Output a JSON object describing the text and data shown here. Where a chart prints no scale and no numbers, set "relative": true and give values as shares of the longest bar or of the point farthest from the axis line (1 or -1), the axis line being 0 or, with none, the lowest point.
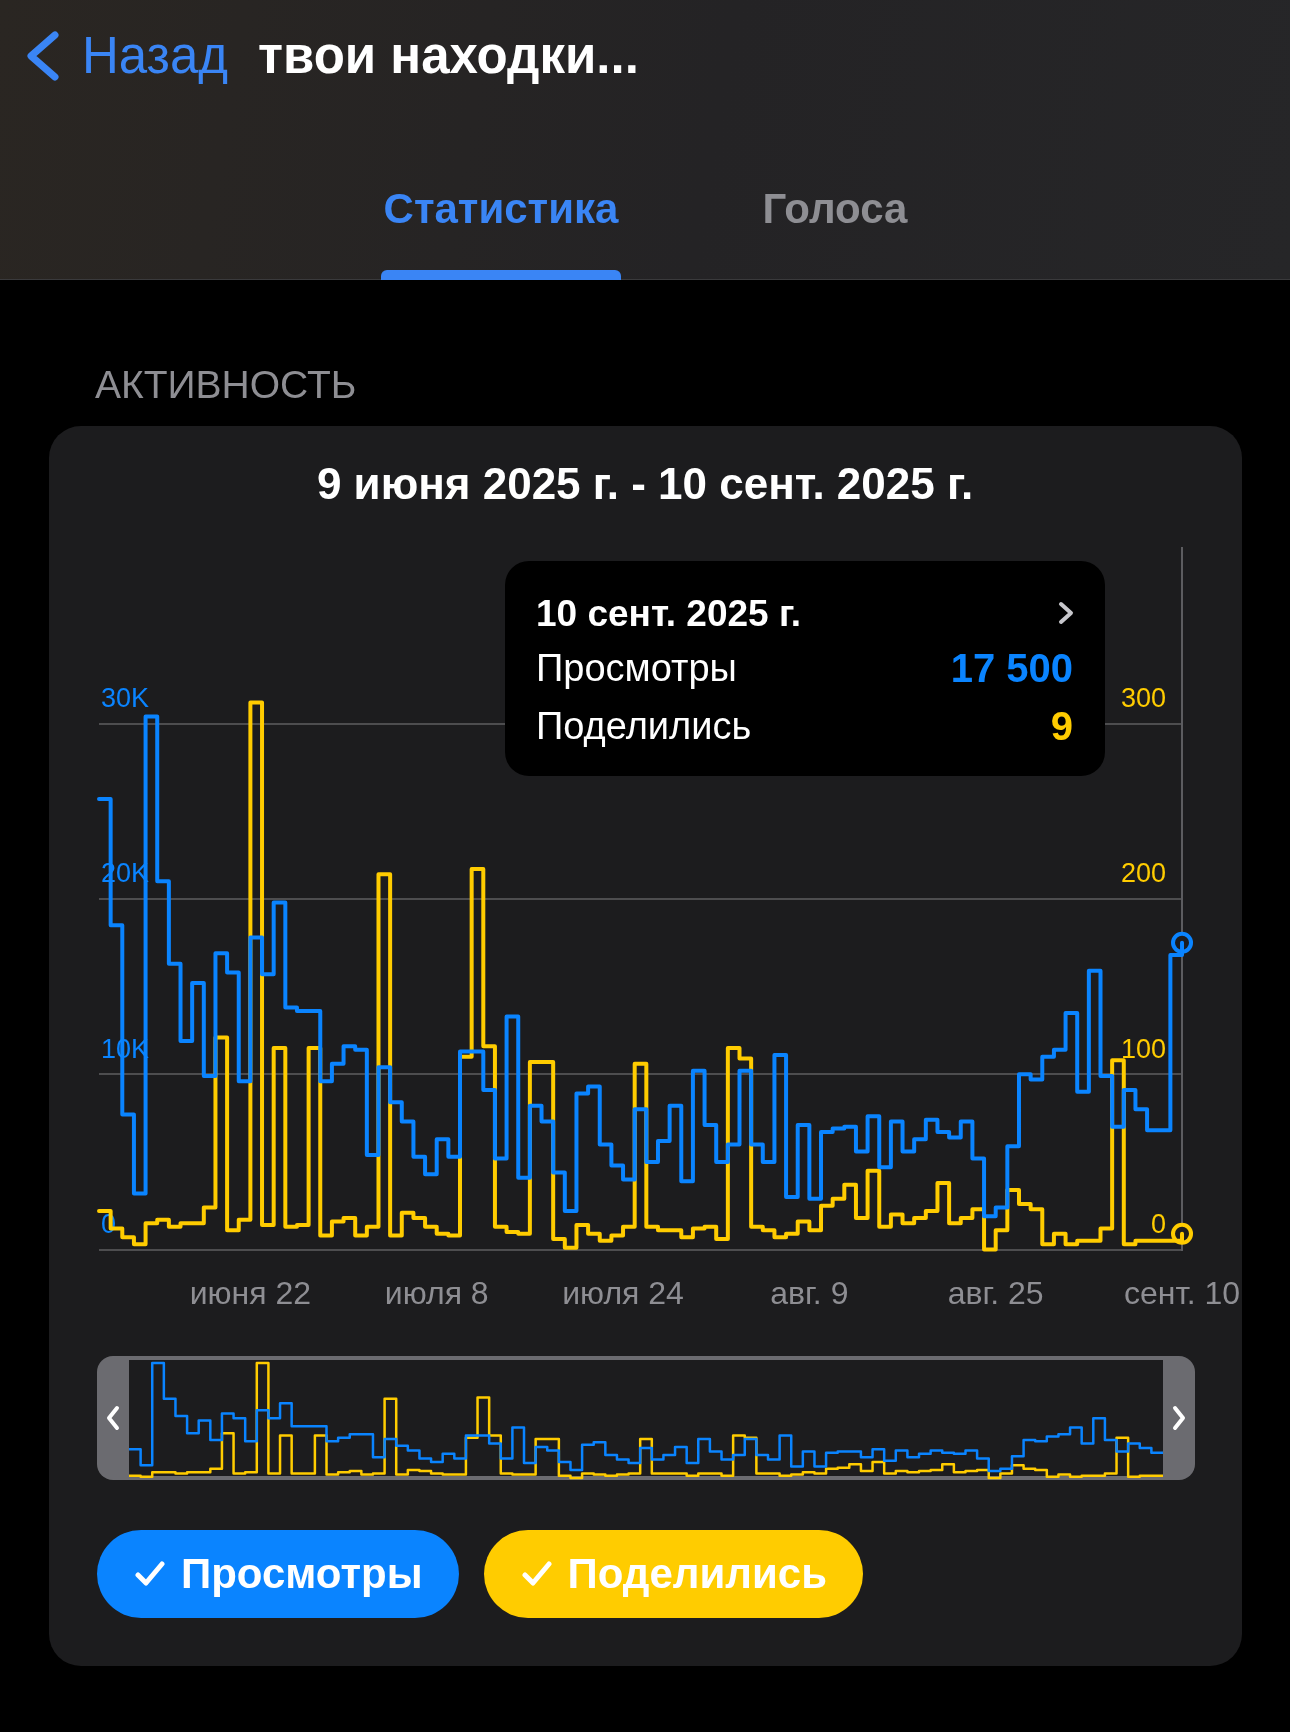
{
  "chart_data": [
    {
      "type": "step",
      "title": "9 июня 2025 г. - 10 сент. 2025 г.",
      "annotations": [
        "Назад",
        "твои находки...",
        "Статистика",
        "Голоса",
        "АКТИВНОСТЬ",
        "10 сент. 2025 г.",
        "Просмотры",
        "17 500",
        "Поделились",
        "9"
      ],
      "categories": [
        null,
        null,
        null,
        null,
        null,
        null,
        null,
        null,
        null,
        null,
        null,
        null,
        null,
        "июня 22",
        null,
        null,
        null,
        null,
        null,
        null,
        null,
        null,
        null,
        null,
        null,
        null,
        null,
        null,
        null,
        "июля 8",
        null,
        null,
        null,
        null,
        null,
        null,
        null,
        null,
        null,
        null,
        null,
        null,
        null,
        null,
        null,
        "июля 24",
        null,
        null,
        null,
        null,
        null,
        null,
        null,
        null,
        null,
        null,
        null,
        null,
        null,
        null,
        null,
        "авг. 9",
        null,
        null,
        null,
        null,
        null,
        null,
        null,
        null,
        null,
        null,
        null,
        null,
        null,
        null,
        null,
        "авг. 25",
        null,
        null,
        null,
        null,
        null,
        null,
        null,
        null,
        null,
        null,
        null,
        null,
        null,
        null,
        null,
        "сент. 10"
      ],
      "series": [
        {
          "color": "#0a84ff",
          "values": [
            25700,
            18500,
            7700,
            3200,
            30400,
            21000,
            16300,
            11900,
            15200,
            9900,
            16900,
            15800,
            9600,
            17800,
            15700,
            19800,
            13800,
            13600,
            13600,
            9600,
            10600,
            11600,
            11400,
            5400,
            10400,
            8400,
            7300,
            5300,
            4300,
            6300,
            5300,
            11300,
            11300,
            9100,
            5200,
            13300,
            4100,
            8200,
            7300,
            4400,
            2200,
            8900,
            9300,
            6000,
            4800,
            4000,
            8000,
            5000,
            6200,
            8200,
            3900,
            10200,
            7100,
            5000,
            6000,
            10200,
            6000,
            5000,
            11100,
            3000,
            7100,
            2900,
            6700,
            6900,
            7000,
            5600,
            7600,
            4700,
            7300,
            5600,
            6300,
            7400,
            6700,
            6400,
            7300,
            5200,
            1900,
            2400,
            5900,
            10000,
            9700,
            11000,
            11400,
            13500,
            9000,
            15900,
            9900,
            7000,
            9100,
            8000,
            6800,
            6800,
            16800,
            17500
          ]
        },
        {
          "color": "#ffcc00",
          "axis": "y2",
          "values": [
            22,
            12,
            7,
            3,
            15,
            17,
            13,
            15,
            15,
            24,
            121,
            11,
            17,
            312,
            14,
            115,
            13,
            14,
            115,
            8,
            16,
            18,
            8,
            13,
            214,
            8,
            21,
            18,
            13,
            9,
            8,
            110,
            217,
            116,
            13,
            10,
            9,
            107,
            107,
            6,
            1,
            14,
            9,
            5,
            8,
            13,
            106,
            13,
            11,
            11,
            7,
            12,
            13,
            6,
            115,
            109,
            13,
            11,
            7,
            9,
            16,
            11,
            25,
            29,
            37,
            18,
            45,
            13,
            20,
            15,
            18,
            22,
            38,
            15,
            18,
            23,
            0,
            11,
            34,
            26,
            23,
            3,
            9,
            3,
            5,
            5,
            12,
            108,
            3,
            5,
            5,
            5,
            5,
            9
          ]
        },
        {
          "type": "scatter",
          "color": "#0a84ff",
          "marker": "circle",
          "x": [
            "сент. 10"
          ],
          "values": [
            17500
          ]
        },
        {
          "type": "scatter",
          "color": "#ffcc00",
          "marker": "circle",
          "axis": "y2",
          "x": [
            "сент. 10"
          ],
          "values": [
            9
          ]
        }
      ],
      "ylim": [
        0,
        40000
      ],
      "yticks": [
        0,
        {
          "value": 10000,
          "label": "10K"
        },
        {
          "value": 20000,
          "label": "20K"
        },
        {
          "value": 30000,
          "label": "30K"
        }
      ],
      "y2lim": [
        0,
        400
      ],
      "y2ticks": [
        0,
        100,
        200,
        300
      ],
      "grid": "y"
    },
    {
      "type": "step",
      "relative": true,
      "legend": "bottom",
      "categories": [
        null,
        null,
        null,
        null,
        null,
        null,
        null,
        null,
        null,
        null,
        null,
        null,
        null,
        null,
        null,
        null,
        null,
        null,
        null,
        null,
        null,
        null,
        null,
        null,
        null,
        null,
        null,
        null,
        null,
        null,
        null,
        null,
        null,
        null,
        null,
        null,
        null,
        null,
        null,
        null,
        null,
        null,
        null,
        null,
        null,
        null,
        null,
        null,
        null,
        null,
        null,
        null,
        null,
        null,
        null,
        null,
        null,
        null,
        null,
        null,
        null,
        null,
        null,
        null,
        null,
        null,
        null,
        null,
        null,
        null,
        null,
        null,
        null,
        null,
        null,
        null,
        null,
        null,
        null,
        null,
        null,
        null,
        null,
        null,
        null,
        null,
        null,
        null,
        null,
        null
      ],
      "series": [
        {
          "name": "Просмотры",
          "color": "#0a84ff",
          "values": [
            0.25,
            0.11,
            1,
            0.69,
            0.54,
            0.39,
            0.5,
            0.33,
            0.56,
            0.52,
            0.32,
            0.59,
            0.52,
            0.65,
            0.45,
            0.45,
            0.45,
            0.32,
            0.35,
            0.38,
            0.38,
            0.18,
            0.34,
            0.28,
            0.24,
            0.17,
            0.14,
            0.21,
            0.17,
            0.37,
            0.37,
            0.3,
            0.17,
            0.44,
            0.13,
            0.27,
            0.24,
            0.14,
            0.07,
            0.29,
            0.31,
            0.2,
            0.16,
            0.13,
            0.26,
            0.16,
            0.2,
            0.27,
            0.13,
            0.34,
            0.23,
            0.16,
            0.2,
            0.34,
            0.2,
            0.16,
            0.37,
            0.1,
            0.23,
            0.1,
            0.22,
            0.23,
            0.23,
            0.18,
            0.25,
            0.15,
            0.24,
            0.18,
            0.21,
            0.24,
            0.22,
            0.21,
            0.24,
            0.17,
            0.06,
            0.08,
            0.19,
            0.33,
            0.32,
            0.36,
            0.38,
            0.44,
            0.3,
            0.52,
            0.33,
            0.23,
            0.3,
            0.26,
            0.22,
            0.22
          ]
        },
        {
          "name": "Поделились",
          "color": "#ffcc00",
          "values": [
            0.02,
            0.01,
            0.05,
            0.05,
            0.04,
            0.05,
            0.05,
            0.08,
            0.39,
            0.04,
            0.05,
            1,
            0.04,
            0.37,
            0.04,
            0.04,
            0.37,
            0.03,
            0.05,
            0.06,
            0.03,
            0.04,
            0.69,
            0.03,
            0.07,
            0.06,
            0.04,
            0.03,
            0.03,
            0.35,
            0.7,
            0.37,
            0.04,
            0.03,
            0.03,
            0.34,
            0.34,
            0.02,
            0,
            0.04,
            0.03,
            0.02,
            0.03,
            0.04,
            0.34,
            0.04,
            0.04,
            0.04,
            0.02,
            0.04,
            0.04,
            0.02,
            0.37,
            0.35,
            0.04,
            0.04,
            0.02,
            0.03,
            0.05,
            0.04,
            0.08,
            0.09,
            0.12,
            0.06,
            0.14,
            0.04,
            0.06,
            0.05,
            0.06,
            0.07,
            0.12,
            0.05,
            0.06,
            0.07,
            0,
            0.04,
            0.11,
            0.08,
            0.07,
            0.01,
            0.03,
            0.01,
            0.02,
            0.02,
            0.04,
            0.35,
            0.01,
            0.02,
            0.02,
            0.02
          ]
        }
      ]
    }
  ]
}
